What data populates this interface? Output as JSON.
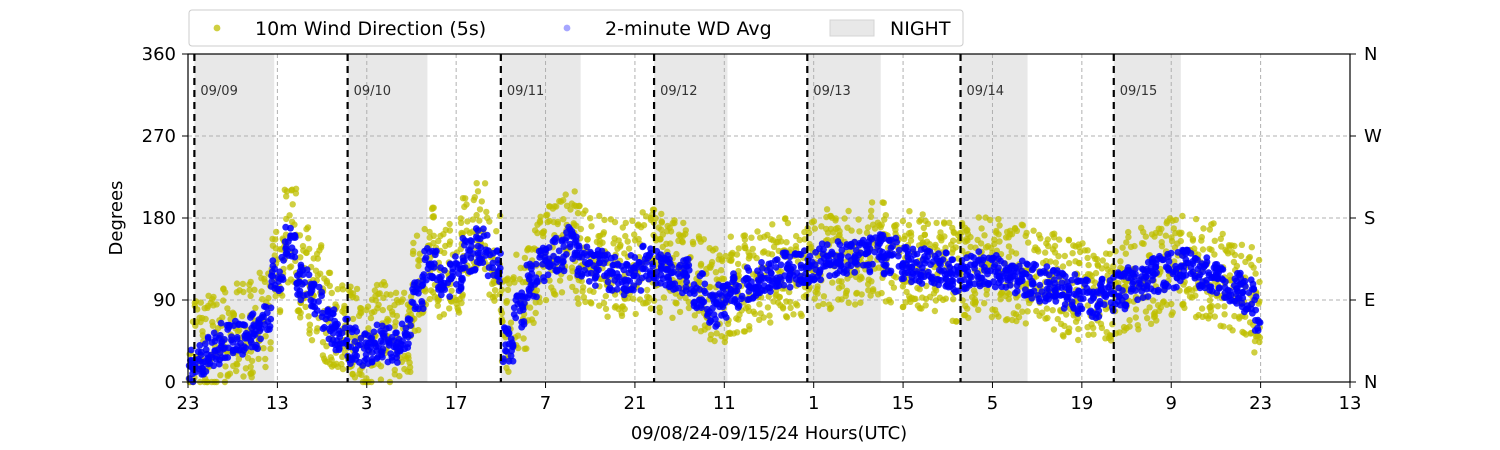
{
  "chart_data": {
    "type": "scatter",
    "xlabel": "09/08/24-09/15/24  Hours(UTC)",
    "ylabel": "Degrees",
    "ylim": [
      0,
      360
    ],
    "yticks": [
      0,
      90,
      180,
      270,
      360
    ],
    "right_ticks": [
      {
        "value": 0,
        "label": "N"
      },
      {
        "value": 90,
        "label": "E"
      },
      {
        "value": 180,
        "label": "S"
      },
      {
        "value": 270,
        "label": "W"
      },
      {
        "value": 360,
        "label": "N"
      }
    ],
    "xlim_hours": [
      0,
      182
    ],
    "xticks": [
      {
        "hour": 0,
        "label": "23"
      },
      {
        "hour": 14,
        "label": "13"
      },
      {
        "hour": 28,
        "label": "3"
      },
      {
        "hour": 42,
        "label": "17"
      },
      {
        "hour": 56,
        "label": "7"
      },
      {
        "hour": 70,
        "label": "21"
      },
      {
        "hour": 84,
        "label": "11"
      },
      {
        "hour": 98,
        "label": "1"
      },
      {
        "hour": 112,
        "label": "15"
      },
      {
        "hour": 126,
        "label": "5"
      },
      {
        "hour": 140,
        "label": "19"
      },
      {
        "hour": 154,
        "label": "9"
      },
      {
        "hour": 168,
        "label": "23"
      },
      {
        "hour": 182,
        "label": "13"
      }
    ],
    "grid": true,
    "legend_position": "top",
    "legend": [
      {
        "label": "10m Wind Direction (5s)",
        "color": "#bfbf00",
        "kind": "marker"
      },
      {
        "label": "2-minute WD Avg",
        "color": "#0000ff",
        "kind": "marker-faded"
      },
      {
        "label": "NIGHT",
        "color": "#e8e8e8",
        "kind": "patch"
      }
    ],
    "day_markers": [
      {
        "hour": 1,
        "label": "09/09"
      },
      {
        "hour": 25,
        "label": "09/10"
      },
      {
        "hour": 49,
        "label": "09/11"
      },
      {
        "hour": 73,
        "label": "09/12"
      },
      {
        "hour": 97,
        "label": "09/13"
      },
      {
        "hour": 121,
        "label": "09/14"
      },
      {
        "hour": 145,
        "label": "09/15"
      }
    ],
    "night_periods": [
      [
        1,
        13.5
      ],
      [
        25,
        37.5
      ],
      [
        49,
        61.5
      ],
      [
        73,
        84.5
      ],
      [
        97,
        108.5
      ],
      [
        121,
        131.5
      ],
      [
        145,
        155.5
      ]
    ],
    "series": [
      {
        "name": "10m Wind Direction (5s)",
        "color": "#bfbf00",
        "x": [
          0,
          2,
          4,
          6,
          8,
          10,
          12,
          14,
          16,
          18,
          20,
          22,
          24,
          26,
          28,
          30,
          32,
          34,
          36,
          38,
          40,
          42,
          44,
          46,
          48,
          50,
          52,
          54,
          56,
          58,
          60,
          62,
          64,
          66,
          68,
          70,
          72,
          74,
          76,
          78,
          80,
          82,
          84,
          86,
          88,
          90,
          92,
          94,
          96,
          98,
          100,
          102,
          104,
          106,
          108,
          110,
          112,
          114,
          116,
          118,
          120,
          122,
          124,
          126,
          128,
          130,
          132,
          134,
          136,
          138,
          140,
          142,
          144,
          146,
          148,
          150,
          152,
          154,
          156,
          158,
          160,
          162,
          164,
          166,
          168
        ],
        "y": [
          20,
          35,
          45,
          50,
          55,
          60,
          70,
          130,
          160,
          120,
          100,
          70,
          60,
          50,
          40,
          55,
          45,
          60,
          110,
          140,
          120,
          130,
          150,
          170,
          140,
          60,
          90,
          120,
          140,
          150,
          155,
          140,
          130,
          125,
          120,
          125,
          135,
          130,
          125,
          120,
          110,
          100,
          95,
          105,
          110,
          115,
          120,
          125,
          125,
          130,
          135,
          140,
          140,
          140,
          145,
          140,
          135,
          130,
          130,
          125,
          120,
          125,
          130,
          125,
          120,
          118,
          115,
          110,
          110,
          105,
          100,
          95,
          100,
          105,
          110,
          115,
          120,
          125,
          130,
          125,
          120,
          115,
          110,
          100,
          80
        ],
        "spread": 55
      },
      {
        "name": "2-minute WD Avg",
        "color": "#0000ff",
        "x": [
          0,
          2,
          4,
          6,
          8,
          10,
          12,
          14,
          16,
          18,
          20,
          22,
          24,
          26,
          28,
          30,
          32,
          34,
          36,
          38,
          40,
          42,
          44,
          46,
          48,
          50,
          52,
          54,
          56,
          58,
          60,
          62,
          64,
          66,
          68,
          70,
          72,
          74,
          76,
          78,
          80,
          82,
          84,
          86,
          88,
          90,
          92,
          94,
          96,
          98,
          100,
          102,
          104,
          106,
          108,
          110,
          112,
          114,
          116,
          118,
          120,
          122,
          124,
          126,
          128,
          130,
          132,
          134,
          136,
          138,
          140,
          142,
          144,
          146,
          148,
          150,
          152,
          154,
          156,
          158,
          160,
          162,
          164,
          166,
          168
        ],
        "y": [
          20,
          25,
          35,
          45,
          50,
          55,
          65,
          120,
          150,
          110,
          90,
          60,
          50,
          40,
          35,
          45,
          40,
          50,
          100,
          130,
          110,
          120,
          140,
          150,
          130,
          40,
          80,
          110,
          130,
          140,
          150,
          130,
          125,
          120,
          115,
          120,
          130,
          125,
          120,
          115,
          100,
          80,
          90,
          100,
          108,
          112,
          118,
          122,
          125,
          128,
          132,
          135,
          138,
          140,
          142,
          138,
          132,
          128,
          128,
          122,
          118,
          122,
          125,
          120,
          118,
          115,
          112,
          108,
          106,
          100,
          95,
          90,
          95,
          100,
          108,
          112,
          118,
          122,
          128,
          122,
          118,
          112,
          105,
          95,
          75
        ],
        "spread": 20
      }
    ]
  }
}
